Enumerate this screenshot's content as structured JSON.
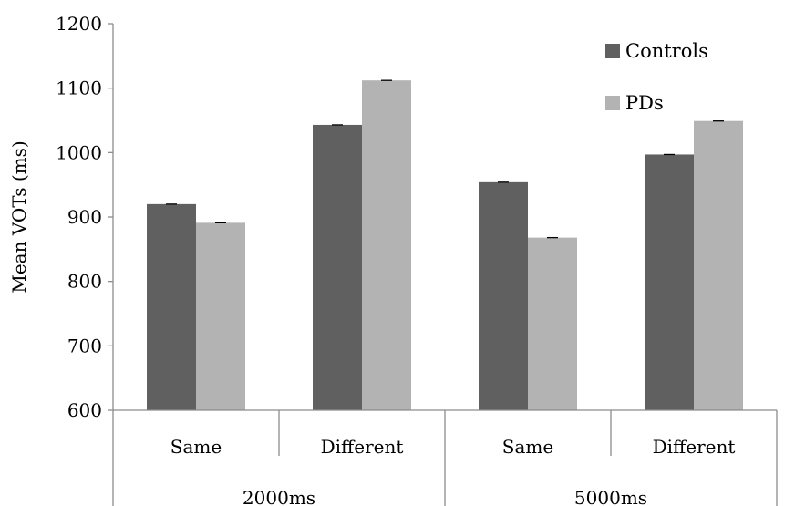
{
  "chart_data": {
    "type": "bar",
    "title": "",
    "xlabel": "",
    "ylabel": "Mean VOTs (ms)",
    "ylim": [
      600,
      1200
    ],
    "yticks": [
      600,
      700,
      800,
      900,
      1000,
      1100,
      1200
    ],
    "grid": false,
    "legend_position": "top-right",
    "groups": [
      {
        "label": "2000ms",
        "categories": [
          "Same",
          "Different"
        ]
      },
      {
        "label": "5000ms",
        "categories": [
          "Same",
          "Different"
        ]
      }
    ],
    "categories": [
      "Same",
      "Different",
      "Same",
      "Different"
    ],
    "series": [
      {
        "name": "Controls",
        "color": "#606060",
        "values": [
          920,
          1043,
          954,
          997
        ]
      },
      {
        "name": "PDs",
        "color": "#b3b3b3",
        "values": [
          891,
          1112,
          868,
          1049
        ]
      }
    ]
  }
}
